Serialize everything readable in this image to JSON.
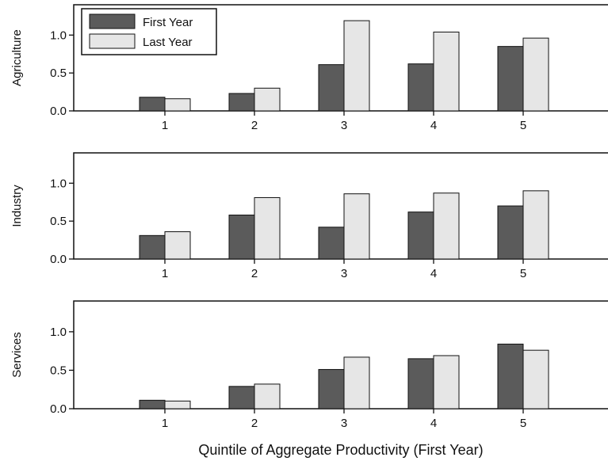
{
  "chart_data": {
    "type": "bar",
    "xlabel": "Quintile of Aggregate Productivity (First Year)",
    "categories": [
      "1",
      "2",
      "3",
      "4",
      "5"
    ],
    "ylim": [
      0,
      1.4
    ],
    "yticks": [
      "0.0",
      "0.5",
      "1.0"
    ],
    "legend_position": "top-left",
    "colors": {
      "first_year": "#5b5b5b",
      "last_year": "#e6e6e6",
      "stroke": "#111111"
    },
    "series_names": [
      "First Year",
      "Last Year"
    ],
    "panels": [
      {
        "ylabel": "Agriculture",
        "first_year": [
          0.18,
          0.23,
          0.61,
          0.62,
          0.85
        ],
        "last_year": [
          0.16,
          0.3,
          1.19,
          1.04,
          0.96
        ]
      },
      {
        "ylabel": "Industry",
        "first_year": [
          0.31,
          0.58,
          0.42,
          0.62,
          0.7
        ],
        "last_year": [
          0.36,
          0.81,
          0.86,
          0.87,
          0.9
        ]
      },
      {
        "ylabel": "Services",
        "first_year": [
          0.11,
          0.29,
          0.51,
          0.65,
          0.84
        ],
        "last_year": [
          0.1,
          0.32,
          0.67,
          0.69,
          0.76
        ]
      }
    ]
  }
}
